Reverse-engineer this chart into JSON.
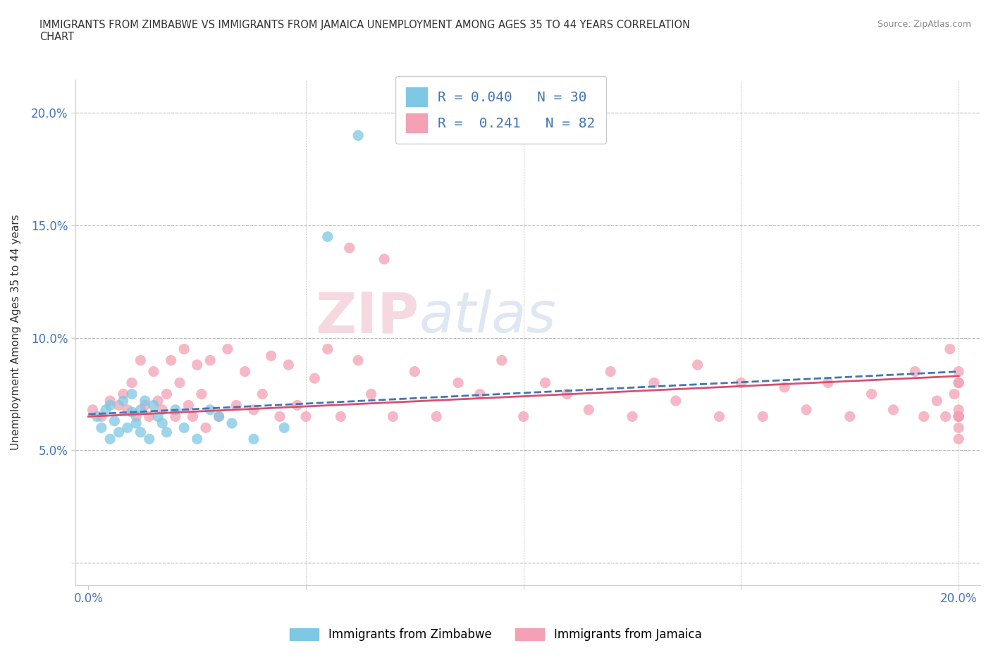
{
  "title": "IMMIGRANTS FROM ZIMBABWE VS IMMIGRANTS FROM JAMAICA UNEMPLOYMENT AMONG AGES 35 TO 44 YEARS CORRELATION\nCHART",
  "source": "Source: ZipAtlas.com",
  "ylabel": "Unemployment Among Ages 35 to 44 years",
  "xlim": [
    -0.003,
    0.205
  ],
  "ylim": [
    -0.01,
    0.215
  ],
  "xticks": [
    0.0,
    0.05,
    0.1,
    0.15,
    0.2
  ],
  "xticklabels": [
    "0.0%",
    "",
    "",
    "",
    "20.0%"
  ],
  "yticks": [
    0.0,
    0.05,
    0.1,
    0.15,
    0.2
  ],
  "yticklabels": [
    "",
    "5.0%",
    "10.0%",
    "15.0%",
    "20.0%"
  ],
  "zimbabwe_color": "#7ec8e3",
  "jamaica_color": "#f4a0b5",
  "trendline_zimbabwe_color": "#4575b4",
  "trendline_jamaica_color": "#d94f6e",
  "R_zimbabwe": 0.04,
  "N_zimbabwe": 30,
  "R_jamaica": 0.241,
  "N_jamaica": 82,
  "background_color": "#ffffff",
  "grid_color": "#bbbbbb",
  "zimbabwe_x": [
    0.002,
    0.003,
    0.004,
    0.005,
    0.005,
    0.006,
    0.007,
    0.008,
    0.009,
    0.01,
    0.01,
    0.011,
    0.012,
    0.012,
    0.013,
    0.014,
    0.015,
    0.016,
    0.017,
    0.018,
    0.02,
    0.022,
    0.025,
    0.028,
    0.03,
    0.033,
    0.038,
    0.045,
    0.055,
    0.062
  ],
  "zimbabwe_y": [
    0.065,
    0.06,
    0.068,
    0.055,
    0.07,
    0.063,
    0.058,
    0.072,
    0.06,
    0.067,
    0.075,
    0.062,
    0.058,
    0.068,
    0.072,
    0.055,
    0.07,
    0.065,
    0.062,
    0.058,
    0.068,
    0.06,
    0.055,
    0.068,
    0.065,
    0.062,
    0.055,
    0.06,
    0.145,
    0.19
  ],
  "jamaica_x": [
    0.001,
    0.003,
    0.005,
    0.007,
    0.008,
    0.009,
    0.01,
    0.011,
    0.012,
    0.013,
    0.014,
    0.015,
    0.016,
    0.017,
    0.018,
    0.019,
    0.02,
    0.021,
    0.022,
    0.023,
    0.024,
    0.025,
    0.026,
    0.027,
    0.028,
    0.03,
    0.032,
    0.034,
    0.036,
    0.038,
    0.04,
    0.042,
    0.044,
    0.046,
    0.048,
    0.05,
    0.052,
    0.055,
    0.058,
    0.06,
    0.062,
    0.065,
    0.068,
    0.07,
    0.075,
    0.08,
    0.085,
    0.09,
    0.095,
    0.1,
    0.105,
    0.11,
    0.115,
    0.12,
    0.125,
    0.13,
    0.135,
    0.14,
    0.145,
    0.15,
    0.155,
    0.16,
    0.165,
    0.17,
    0.175,
    0.18,
    0.185,
    0.19,
    0.192,
    0.195,
    0.197,
    0.198,
    0.199,
    0.2,
    0.2,
    0.2,
    0.2,
    0.2,
    0.2,
    0.2,
    0.2,
    0.2
  ],
  "jamaica_y": [
    0.068,
    0.065,
    0.072,
    0.07,
    0.075,
    0.068,
    0.08,
    0.065,
    0.09,
    0.07,
    0.065,
    0.085,
    0.072,
    0.068,
    0.075,
    0.09,
    0.065,
    0.08,
    0.095,
    0.07,
    0.065,
    0.088,
    0.075,
    0.06,
    0.09,
    0.065,
    0.095,
    0.07,
    0.085,
    0.068,
    0.075,
    0.092,
    0.065,
    0.088,
    0.07,
    0.065,
    0.082,
    0.095,
    0.065,
    0.14,
    0.09,
    0.075,
    0.135,
    0.065,
    0.085,
    0.065,
    0.08,
    0.075,
    0.09,
    0.065,
    0.08,
    0.075,
    0.068,
    0.085,
    0.065,
    0.08,
    0.072,
    0.088,
    0.065,
    0.08,
    0.065,
    0.078,
    0.068,
    0.08,
    0.065,
    0.075,
    0.068,
    0.085,
    0.065,
    0.072,
    0.065,
    0.095,
    0.075,
    0.068,
    0.065,
    0.08,
    0.065,
    0.06,
    0.055,
    0.085,
    0.065,
    0.08
  ]
}
